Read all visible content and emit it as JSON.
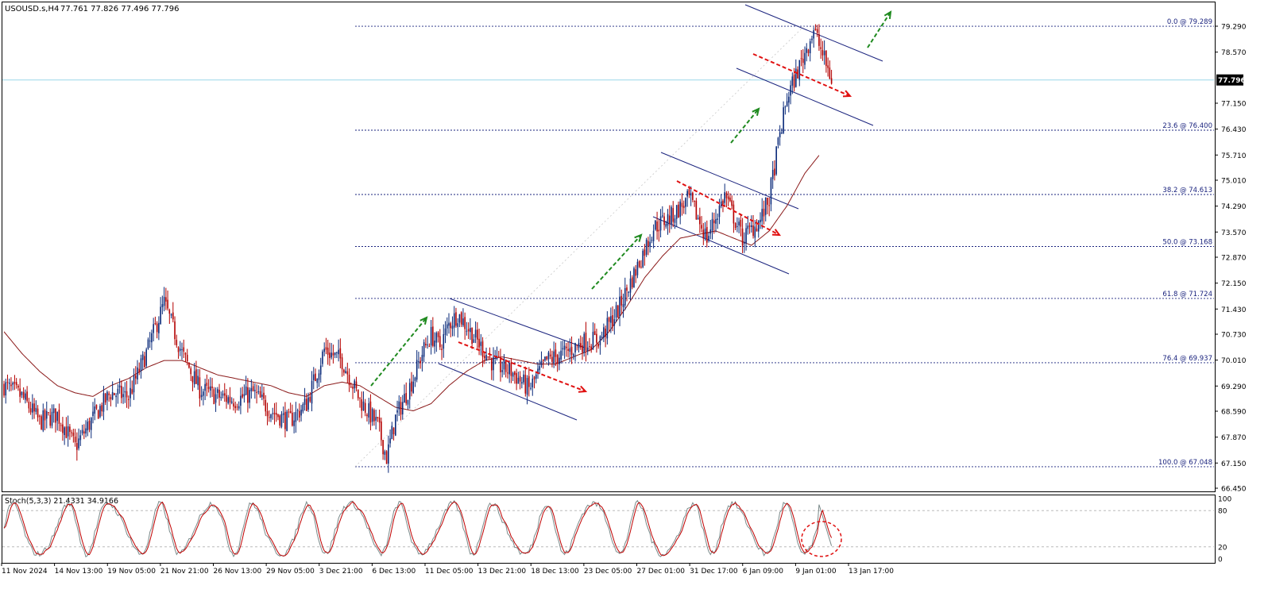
{
  "header": {
    "symbol": "USOUSD.s,H4",
    "ohlc": "77.761 77.826 77.496 77.796"
  },
  "stoch_header": "Stoch(5,3,3) 21.4331 34.9166",
  "colors": {
    "bull": "#0a2a7a",
    "bear": "#b30000",
    "ma": "#8b1a1a",
    "fib": "#1a237e",
    "channel": "#1a237e",
    "green_arrow": "#1f8a1f",
    "red_arrow": "#e01010",
    "price_line": "#9ad7e8",
    "price_tag_bg": "#000000",
    "stoch_main": "#7a8a8a",
    "stoch_signal": "#c00000"
  },
  "icons": [
    "green-dashed-arrow-icon",
    "red-dashed-arrow-icon",
    "red-dashed-circle-icon"
  ],
  "chart_data": [
    {
      "type": "candlestick",
      "title": "USOUSD.s,H4",
      "ylim": [
        66.45,
        79.99
      ],
      "y_ticks": [
        "79.290",
        "78.570",
        "77.150",
        "76.430",
        "75.710",
        "75.010",
        "74.290",
        "73.570",
        "72.870",
        "72.150",
        "71.430",
        "70.730",
        "70.010",
        "69.290",
        "68.590",
        "67.870",
        "67.150",
        "66.450"
      ],
      "x_ticks": [
        "11 Nov 2024",
        "14 Nov 13:00",
        "19 Nov 05:00",
        "21 Nov 21:00",
        "26 Nov 13:00",
        "29 Nov 05:00",
        "3 Dec 21:00",
        "6 Dec 13:00",
        "11 Dec 05:00",
        "13 Dec 21:00",
        "18 Dec 13:00",
        "23 Dec 05:00",
        "27 Dec 01:00",
        "31 Dec 17:00",
        "6 Jan 09:00",
        "9 Jan 01:00",
        "13 Jan 17:00"
      ],
      "current_price": "77.796",
      "price_anchors": [
        [
          0,
          69.3
        ],
        [
          10,
          69.0
        ],
        [
          20,
          68.3
        ],
        [
          30,
          68.5
        ],
        [
          40,
          67.6
        ],
        [
          50,
          68.4
        ],
        [
          60,
          69.1
        ],
        [
          70,
          69.0
        ],
        [
          80,
          70.2
        ],
        [
          90,
          71.6
        ],
        [
          100,
          70.2
        ],
        [
          110,
          69.2
        ],
        [
          120,
          69.0
        ],
        [
          130,
          68.9
        ],
        [
          140,
          69.1
        ],
        [
          150,
          68.6
        ],
        [
          160,
          68.3
        ],
        [
          170,
          68.8
        ],
        [
          180,
          70.3
        ],
        [
          190,
          70.0
        ],
        [
          200,
          68.9
        ],
        [
          210,
          68.2
        ],
        [
          215,
          67.3
        ],
        [
          220,
          68.4
        ],
        [
          230,
          69.5
        ],
        [
          235,
          70.2
        ],
        [
          240,
          70.7
        ],
        [
          245,
          70.4
        ],
        [
          250,
          71.0
        ],
        [
          255,
          71.3
        ],
        [
          265,
          70.6
        ],
        [
          275,
          69.9
        ],
        [
          285,
          69.7
        ],
        [
          295,
          69.2
        ],
        [
          305,
          70.0
        ],
        [
          315,
          70.2
        ],
        [
          325,
          70.5
        ],
        [
          335,
          70.6
        ],
        [
          345,
          71.4
        ],
        [
          355,
          72.5
        ],
        [
          365,
          73.7
        ],
        [
          375,
          74.0
        ],
        [
          385,
          74.5
        ],
        [
          395,
          73.4
        ],
        [
          405,
          74.6
        ],
        [
          415,
          73.4
        ],
        [
          425,
          73.9
        ],
        [
          430,
          74.5
        ],
        [
          435,
          76.0
        ],
        [
          440,
          77.3
        ],
        [
          448,
          78.3
        ],
        [
          455,
          79.2
        ],
        [
          460,
          78.5
        ],
        [
          465,
          77.8
        ]
      ],
      "candle_count": 466,
      "moving_average": {
        "name": "",
        "anchors": [
          [
            0,
            70.8
          ],
          [
            10,
            70.2
          ],
          [
            20,
            69.7
          ],
          [
            30,
            69.3
          ],
          [
            40,
            69.1
          ],
          [
            50,
            69.0
          ],
          [
            60,
            69.3
          ],
          [
            70,
            69.5
          ],
          [
            80,
            69.8
          ],
          [
            90,
            70.0
          ],
          [
            100,
            70.0
          ],
          [
            110,
            69.8
          ],
          [
            120,
            69.6
          ],
          [
            130,
            69.5
          ],
          [
            140,
            69.4
          ],
          [
            150,
            69.3
          ],
          [
            160,
            69.1
          ],
          [
            170,
            69.0
          ],
          [
            180,
            69.3
          ],
          [
            190,
            69.4
          ],
          [
            200,
            69.3
          ],
          [
            210,
            69.0
          ],
          [
            220,
            68.7
          ],
          [
            230,
            68.6
          ],
          [
            240,
            68.8
          ],
          [
            250,
            69.3
          ],
          [
            260,
            69.7
          ],
          [
            270,
            70.0
          ],
          [
            280,
            70.1
          ],
          [
            290,
            70.0
          ],
          [
            300,
            69.9
          ],
          [
            310,
            69.9
          ],
          [
            320,
            70.1
          ],
          [
            330,
            70.3
          ],
          [
            340,
            70.8
          ],
          [
            350,
            71.5
          ],
          [
            360,
            72.3
          ],
          [
            370,
            72.9
          ],
          [
            380,
            73.4
          ],
          [
            390,
            73.5
          ],
          [
            400,
            73.6
          ],
          [
            410,
            73.4
          ],
          [
            420,
            73.2
          ],
          [
            430,
            73.6
          ],
          [
            440,
            74.3
          ],
          [
            450,
            75.2
          ],
          [
            458,
            75.7
          ]
        ]
      },
      "fibonacci": [
        {
          "label": "0.0 @ 79.289",
          "value": 79.289
        },
        {
          "label": "23.6 @ 76.400",
          "value": 76.4
        },
        {
          "label": "38.2 @ 74.613",
          "value": 74.613
        },
        {
          "label": "50.0 @ 73.168",
          "value": 73.168
        },
        {
          "label": "61.8 @ 71.724",
          "value": 71.724
        },
        {
          "label": "76.4 @ 69.937",
          "value": 69.937
        },
        {
          "label": "100.0 @ 67.048",
          "value": 67.048
        }
      ]
    },
    {
      "type": "line",
      "title": "Stoch(5,3,3) 21.4331 34.9166",
      "ylim": [
        0,
        100
      ],
      "y_ticks": [
        "100",
        "80",
        "20",
        "0"
      ],
      "levels": [
        80,
        20
      ],
      "main_value": 21.4331,
      "signal_value": 34.9166
    }
  ]
}
